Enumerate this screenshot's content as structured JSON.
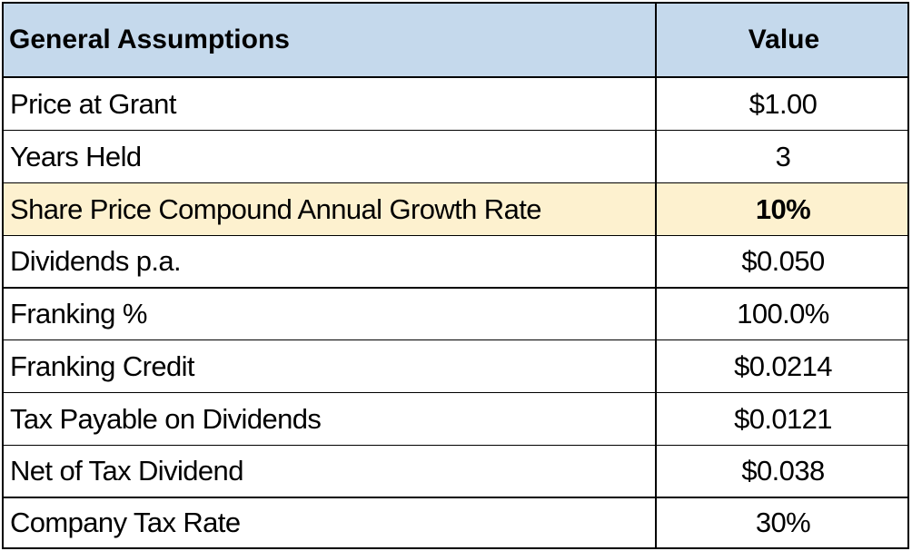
{
  "table": {
    "header": {
      "label": "General Assumptions",
      "value": "Value"
    },
    "rows": [
      {
        "label": "Price at Grant",
        "value": "$1.00"
      },
      {
        "label": "Years Held",
        "value": "3"
      },
      {
        "label": "Share Price Compound Annual Growth Rate",
        "value": "10%"
      },
      {
        "label": "Dividends p.a.",
        "value": "$0.050"
      },
      {
        "label": "Franking %",
        "value": "100.0%"
      },
      {
        "label": "Franking Credit",
        "value": "$0.0214"
      },
      {
        "label": "Tax Payable on Dividends",
        "value": "$0.0121"
      },
      {
        "label": "Net of Tax Dividend",
        "value": "$0.038"
      },
      {
        "label": "Company Tax Rate",
        "value": "30%"
      }
    ]
  },
  "colors": {
    "header_background": "#c5d9ec",
    "highlight_background": "#fdf1cf",
    "border": "#000000"
  }
}
